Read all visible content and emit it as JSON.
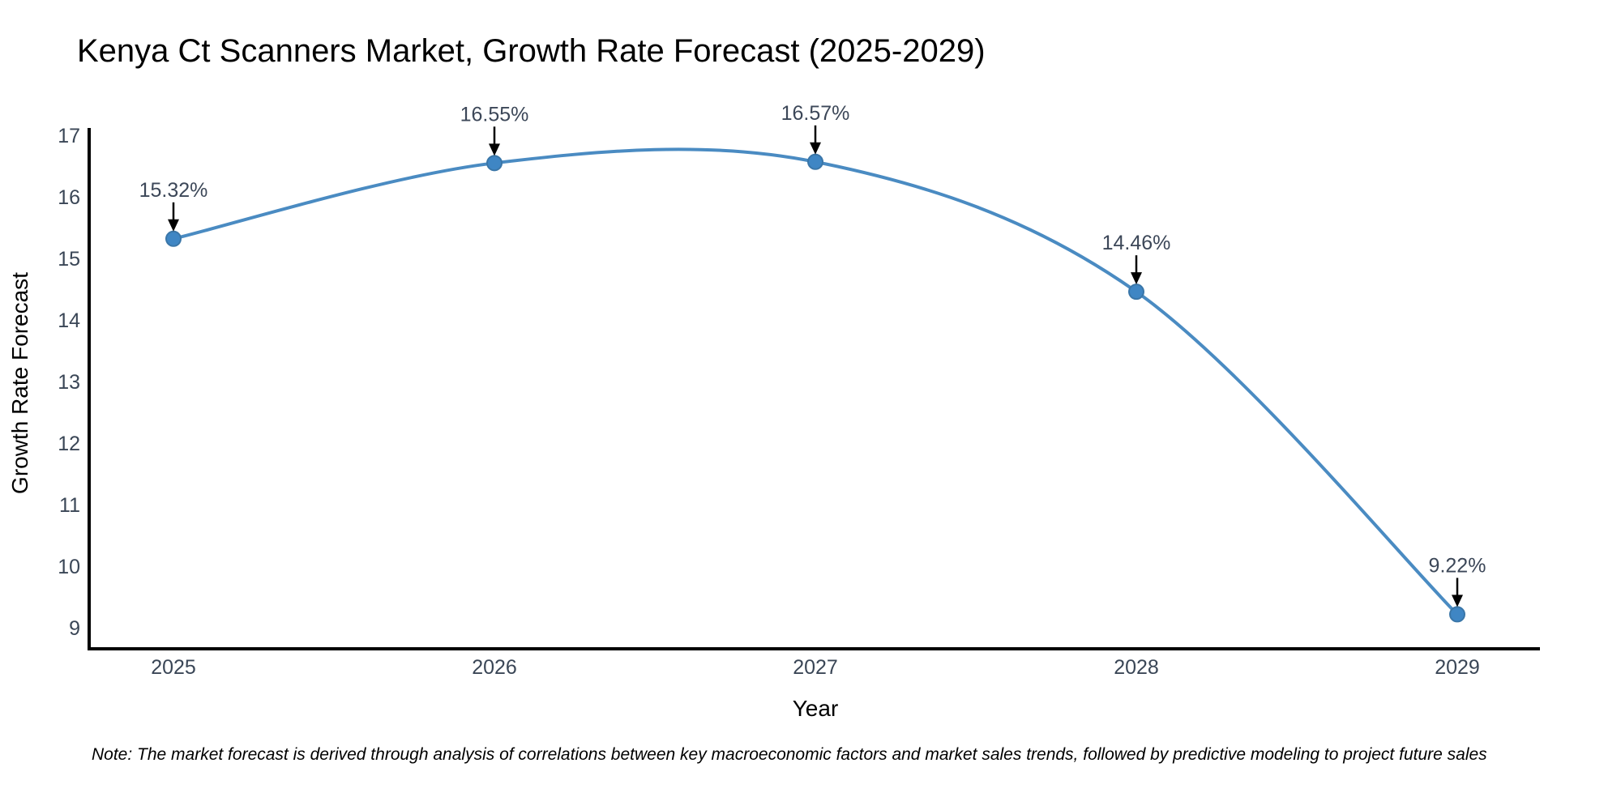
{
  "chart_data": {
    "type": "line",
    "title": "Kenya Ct Scanners Market, Growth Rate Forecast (2025-2029)",
    "xlabel": "Year",
    "ylabel": "Growth Rate Forecast",
    "categories": [
      "2025",
      "2026",
      "2027",
      "2028",
      "2029"
    ],
    "series": [
      {
        "name": "Growth Rate Forecast",
        "values": [
          15.32,
          16.55,
          16.57,
          14.46,
          9.22
        ]
      }
    ],
    "point_labels": [
      "15.32%",
      "16.55%",
      "16.57%",
      "14.46%",
      "9.22%"
    ],
    "yticks": [
      9,
      10,
      11,
      12,
      13,
      14,
      15,
      16,
      17
    ],
    "ylim": [
      8.66,
      17.12
    ],
    "grid": false,
    "legend_position": "none",
    "line_shape": "spline",
    "colors": {
      "line": "#4a8bc2",
      "marker_fill": "#3f86c4",
      "marker_edge": "#3a76a8",
      "arrow": "#000000",
      "axis_line": "#000000",
      "title_text": "#2c3e5a",
      "axis_title_text": "#3b4a63",
      "tick_text": "#3a4656",
      "annotation_text": "#3c4758",
      "note_text": "#111111"
    }
  },
  "note": {
    "text": "Note: The market forecast is derived through analysis of correlations between key macroeconomic factors and market sales trends, followed by predictive modeling to project future sales"
  }
}
